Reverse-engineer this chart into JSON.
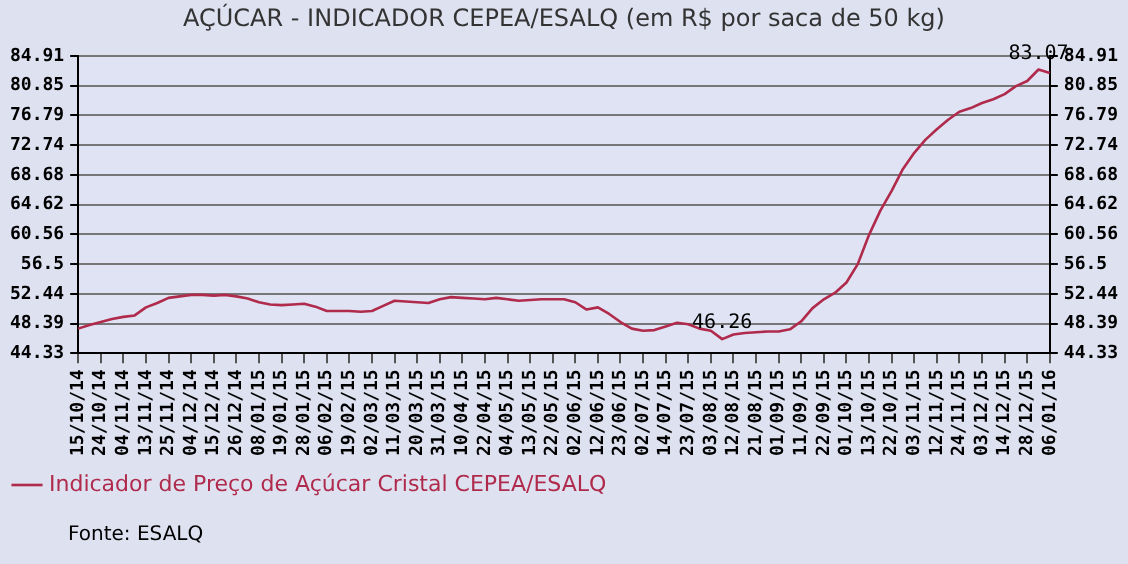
{
  "chart_data": {
    "type": "line",
    "title": "AÇÚCAR - INDICADOR CEPEA/ESALQ (em R$ por saca de 50 kg)",
    "categories": [
      "15/10/14",
      null,
      "24/10/14",
      null,
      "04/11/14",
      null,
      "13/11/14",
      null,
      "25/11/14",
      null,
      "04/12/14",
      null,
      "15/12/14",
      null,
      "26/12/14",
      null,
      "08/01/15",
      null,
      "19/01/15",
      null,
      "28/01/15",
      null,
      "06/02/15",
      null,
      "19/02/15",
      null,
      "02/03/15",
      null,
      "11/03/15",
      null,
      "20/03/15",
      null,
      "31/03/15",
      null,
      "10/04/15",
      null,
      "22/04/15",
      null,
      "04/05/15",
      null,
      "13/05/15",
      null,
      "22/05/15",
      null,
      "02/06/15",
      null,
      "12/06/15",
      null,
      "23/06/15",
      null,
      "02/07/15",
      null,
      "14/07/15",
      null,
      "23/07/15",
      null,
      "03/08/15",
      null,
      "12/08/15",
      null,
      "21/08/15",
      null,
      "01/09/15",
      null,
      "11/09/15",
      null,
      "22/09/15",
      null,
      "01/10/15",
      null,
      "13/10/15",
      null,
      "22/10/15",
      null,
      "03/11/15",
      null,
      "12/11/15",
      null,
      "24/11/15",
      null,
      "03/12/15",
      null,
      "14/12/15",
      null,
      "28/12/15",
      null,
      "06/01/16"
    ],
    "series": [
      {
        "name": "Indicador de Preço de Açúcar Cristal CEPEA/ESALQ",
        "color": "#b02a4c",
        "values": [
          47.7,
          48.2,
          48.6,
          49.0,
          49.3,
          49.5,
          50.6,
          51.2,
          51.9,
          52.1,
          52.3,
          52.3,
          52.2,
          52.3,
          52.1,
          51.8,
          51.3,
          51.0,
          50.9,
          51.0,
          51.1,
          50.7,
          50.1,
          50.1,
          50.1,
          50.0,
          50.1,
          50.8,
          51.5,
          51.4,
          51.3,
          51.2,
          51.7,
          52.0,
          51.9,
          51.8,
          51.7,
          51.9,
          51.7,
          51.5,
          51.6,
          51.7,
          51.7,
          51.7,
          51.3,
          50.3,
          50.6,
          49.7,
          48.6,
          47.7,
          47.4,
          47.5,
          48.0,
          48.5,
          48.3,
          47.7,
          47.4,
          46.26,
          46.9,
          47.1,
          47.2,
          47.3,
          47.3,
          47.6,
          48.7,
          50.5,
          51.7,
          52.6,
          54.0,
          56.5,
          60.5,
          63.8,
          66.5,
          69.5,
          71.7,
          73.5,
          74.9,
          76.2,
          77.3,
          77.8,
          78.5,
          79.0,
          79.7,
          80.8,
          81.5,
          83.07,
          82.6
        ],
        "value_labels": [
          null,
          null,
          null,
          null,
          null,
          null,
          null,
          null,
          null,
          null,
          null,
          null,
          null,
          null,
          null,
          null,
          null,
          null,
          null,
          null,
          null,
          null,
          null,
          null,
          null,
          null,
          null,
          null,
          null,
          null,
          null,
          null,
          null,
          null,
          null,
          null,
          null,
          null,
          null,
          null,
          null,
          null,
          null,
          null,
          null,
          null,
          null,
          null,
          null,
          null,
          null,
          null,
          null,
          null,
          null,
          null,
          null,
          "46.26",
          null,
          null,
          null,
          null,
          null,
          null,
          null,
          null,
          null,
          null,
          null,
          null,
          null,
          null,
          null,
          null,
          null,
          null,
          null,
          null,
          null,
          null,
          null,
          null,
          null,
          null,
          null,
          "83.07",
          null
        ]
      }
    ],
    "ylim": [
      44.33,
      84.91
    ],
    "yticks": [
      44.33,
      48.39,
      52.44,
      56.5,
      60.56,
      64.62,
      68.68,
      72.74,
      76.79,
      80.85,
      84.91
    ],
    "y2lim": [
      44.33,
      84.91
    ],
    "y2ticks": [
      44.33,
      48.39,
      52.44,
      56.5,
      60.56,
      64.62,
      68.68,
      72.74,
      76.79,
      80.85,
      84.91
    ],
    "grid": "y",
    "legend": "bottom left",
    "marker": "none",
    "line_style": "solid",
    "annotations": [
      "Fonte: ESALQ"
    ]
  }
}
